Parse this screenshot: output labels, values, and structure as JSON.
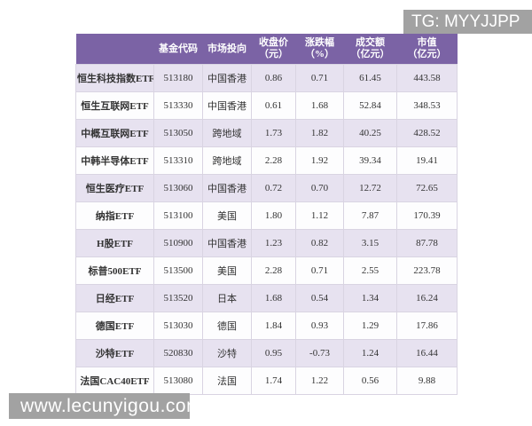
{
  "badges": {
    "tg_label": "TG: MYYJJPP",
    "watermark": "www.lecunyigou.com"
  },
  "colors": {
    "header_bg": "#7b63a5",
    "header_text": "#ffffff",
    "stripe": "#e7e2f0",
    "row_white": "#fdfdfe",
    "grid_line": "#d9d4e2",
    "text": "#333333",
    "badge_bg": "#a2a2a2",
    "badge_text": "#ffffff"
  },
  "chart_data": {
    "type": "table",
    "columns": [
      {
        "key": "name",
        "label": "",
        "sub": ""
      },
      {
        "key": "code",
        "label": "基金代码",
        "sub": ""
      },
      {
        "key": "market",
        "label": "市场投向",
        "sub": ""
      },
      {
        "key": "close",
        "label": "收盘价",
        "sub": "（元）"
      },
      {
        "key": "change",
        "label": "涨跌幅",
        "sub": "（%）"
      },
      {
        "key": "turnover",
        "label": "成交额",
        "sub": "（亿元）"
      },
      {
        "key": "mcap",
        "label": "市值",
        "sub": "（亿元）"
      }
    ],
    "rows": [
      [
        "恒生科技指数ETF",
        "513180",
        "中国香港",
        "0.86",
        "0.71",
        "61.45",
        "443.58"
      ],
      [
        "恒生互联网ETF",
        "513330",
        "中国香港",
        "0.61",
        "1.68",
        "52.84",
        "348.53"
      ],
      [
        "中概互联网ETF",
        "513050",
        "跨地域",
        "1.73",
        "1.82",
        "40.25",
        "428.52"
      ],
      [
        "中韩半导体ETF",
        "513310",
        "跨地域",
        "2.28",
        "1.92",
        "39.34",
        "19.41"
      ],
      [
        "恒生医疗ETF",
        "513060",
        "中国香港",
        "0.72",
        "0.70",
        "12.72",
        "72.65"
      ],
      [
        "纳指ETF",
        "513100",
        "美国",
        "1.80",
        "1.12",
        "7.87",
        "170.39"
      ],
      [
        "H股ETF",
        "510900",
        "中国香港",
        "1.23",
        "0.82",
        "3.15",
        "87.78"
      ],
      [
        "标普500ETF",
        "513500",
        "美国",
        "2.28",
        "0.71",
        "2.55",
        "223.78"
      ],
      [
        "日经ETF",
        "513520",
        "日本",
        "1.68",
        "0.54",
        "1.34",
        "16.24"
      ],
      [
        "德国ETF",
        "513030",
        "德国",
        "1.84",
        "0.93",
        "1.29",
        "17.86"
      ],
      [
        "沙特ETF",
        "520830",
        "沙特",
        "0.95",
        "-0.73",
        "1.24",
        "16.44"
      ],
      [
        "法国CAC40ETF",
        "513080",
        "法国",
        "1.74",
        "1.22",
        "0.56",
        "9.88"
      ]
    ],
    "title": "",
    "legend": "none",
    "grid": "on"
  }
}
